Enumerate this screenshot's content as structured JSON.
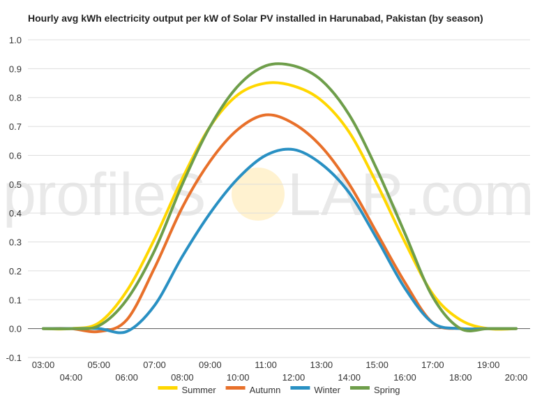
{
  "chart_data": {
    "type": "line",
    "title": "Hourly avg kWh electricity output per kW of Solar PV installed in Harunabad, Pakistan (by season)",
    "xlabel": "",
    "ylabel": "",
    "x": [
      "03:00",
      "04:00",
      "05:00",
      "06:00",
      "07:00",
      "08:00",
      "09:00",
      "10:00",
      "11:00",
      "12:00",
      "13:00",
      "14:00",
      "15:00",
      "16:00",
      "17:00",
      "18:00",
      "19:00",
      "20:00"
    ],
    "y_ticks": [
      "-0.1",
      "0.0",
      "0.1",
      "0.2",
      "0.3",
      "0.4",
      "0.5",
      "0.6",
      "0.7",
      "0.8",
      "0.9",
      "1.0"
    ],
    "ylim": [
      -0.1,
      1.0
    ],
    "grid": true,
    "legend_position": "bottom",
    "series": [
      {
        "name": "Summer",
        "color": "#FFD700",
        "values": [
          0.0,
          0.0,
          0.02,
          0.13,
          0.31,
          0.52,
          0.7,
          0.81,
          0.85,
          0.84,
          0.79,
          0.68,
          0.5,
          0.3,
          0.12,
          0.03,
          0.0,
          0.0
        ]
      },
      {
        "name": "Autumn",
        "color": "#E8702A",
        "values": [
          0.0,
          0.0,
          -0.01,
          0.03,
          0.21,
          0.42,
          0.58,
          0.69,
          0.74,
          0.71,
          0.63,
          0.5,
          0.33,
          0.16,
          0.02,
          0.0,
          0.0,
          0.0
        ]
      },
      {
        "name": "Winter",
        "color": "#2990C3",
        "values": [
          0.0,
          0.0,
          0.0,
          -0.01,
          0.08,
          0.25,
          0.4,
          0.52,
          0.6,
          0.62,
          0.57,
          0.47,
          0.31,
          0.14,
          0.02,
          0.0,
          0.0,
          0.0
        ]
      },
      {
        "name": "Spring",
        "color": "#6E9E4A",
        "values": [
          0.0,
          0.0,
          0.01,
          0.1,
          0.27,
          0.5,
          0.7,
          0.84,
          0.91,
          0.91,
          0.86,
          0.74,
          0.55,
          0.33,
          0.11,
          0.0,
          0.0,
          0.0
        ]
      }
    ]
  },
  "watermark": {
    "left": "profileS",
    "right": "LAR.com",
    "sun_color": "#FFE9B0"
  }
}
